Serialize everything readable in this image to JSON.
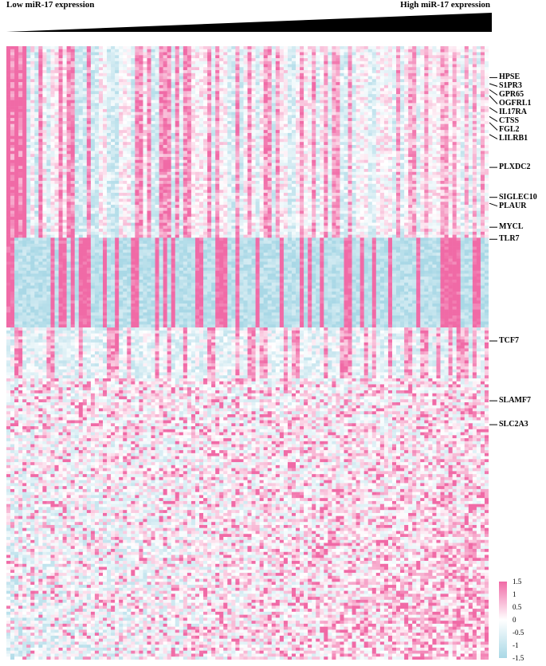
{
  "header": {
    "left_label": "Low miR-17 expression",
    "right_label": "High miR-17 expression"
  },
  "chart_data": {
    "type": "heatmap",
    "title": "",
    "xlabel": "",
    "ylabel": "",
    "x_direction": "samples ordered from Low miR-17 expression to High miR-17 expression",
    "n_columns": 120,
    "n_rows": 205,
    "value_range": [
      -1.5,
      1.5
    ],
    "colors": {
      "low": "#a9d8e6",
      "mid": "#ffffff",
      "high": "#f06aa6"
    },
    "legend": {
      "ticks": [
        "1.5",
        "1",
        "0.5",
        "0",
        "-0.5",
        "-1",
        "-1.5"
      ],
      "placement": "bottom-right"
    },
    "gene_labels": [
      {
        "name": "HPSE",
        "row": 10
      },
      {
        "name": "S1PR3",
        "row": 12
      },
      {
        "name": "GPR65",
        "row": 14
      },
      {
        "name": "OGFRL1",
        "row": 16
      },
      {
        "name": "IL17RA",
        "row": 20
      },
      {
        "name": "CTSS",
        "row": 23
      },
      {
        "name": "FGL2",
        "row": 25
      },
      {
        "name": "LILRB1",
        "row": 29
      },
      {
        "name": "PLXDC2",
        "row": 40
      },
      {
        "name": "SIGLEC10",
        "row": 50
      },
      {
        "name": "PLAUR",
        "row": 52
      },
      {
        "name": "MYCL",
        "row": 60
      },
      {
        "name": "TLR7",
        "row": 64
      },
      {
        "name": "TCF7",
        "row": 98
      },
      {
        "name": "SLAMF7",
        "row": 118
      },
      {
        "name": "SLC2A3",
        "row": 126
      }
    ],
    "row_blocks": [
      {
        "start": 0,
        "end": 63,
        "pattern": "column-driven, high in lowest miR-17 samples"
      },
      {
        "start": 64,
        "end": 93,
        "pattern": "strong vertical stripes"
      },
      {
        "start": 94,
        "end": 110,
        "pattern": "stripes, weaker"
      },
      {
        "start": 111,
        "end": 204,
        "pattern": "mixed, increasing toward high miR-17"
      }
    ]
  }
}
